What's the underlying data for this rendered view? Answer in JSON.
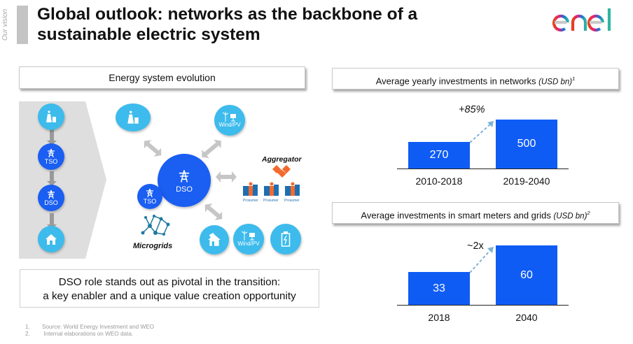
{
  "header": {
    "section": "Our vision",
    "title_line1": "Global outlook: networks as the backbone of a",
    "title_line2": "sustainable electric system",
    "logo_text": "enel",
    "logo_colors": [
      "#e8401c",
      "#e6207a",
      "#1f6dd8",
      "#2fb5a0"
    ]
  },
  "left_panel": {
    "heading": "Energy system evolution",
    "traditional_chain": [
      {
        "icon": "power-plant-icon",
        "label": ""
      },
      {
        "icon": "transmission-tower-icon",
        "label": "TSO"
      },
      {
        "icon": "transmission-tower-icon",
        "label": "DSO"
      },
      {
        "icon": "house-icon",
        "label": ""
      }
    ],
    "hub": {
      "icon": "transmission-tower-icon",
      "label": "DSO"
    },
    "tso_node": {
      "icon": "transmission-tower-icon",
      "label": "TSO"
    },
    "power_plant_node": {
      "icon": "power-plant-icon",
      "label": ""
    },
    "wind_pv_top": {
      "icon": "wind-solar-icon",
      "label": "Wind/PV"
    },
    "aggregator": {
      "label": "Aggregator",
      "icon": "handshake-icon",
      "prosumers": [
        "Prosumer",
        "Prosumer",
        "Prosumer"
      ]
    },
    "microgrids_label": "Microgrids",
    "bottom_nodes": [
      {
        "icon": "house-solar-icon",
        "label": ""
      },
      {
        "icon": "wind-solar-icon",
        "label": "Wind/PV"
      },
      {
        "icon": "battery-icon",
        "label": ""
      }
    ],
    "message_line1": "DSO role stands out as pivotal in the transition:",
    "message_line2": "a key enabler and a unique value creation opportunity"
  },
  "footnotes": [
    {
      "num": "1.",
      "text": "Source: World Energy Investment and  WEO"
    },
    {
      "num": "2.",
      "text": " Internal elaborations on WEO data."
    }
  ],
  "colors": {
    "bar": "#0f5cf5",
    "light_blue": "#3dbbec",
    "dark_blue": "#1a5ef2",
    "arrow_gray": "#c6c6c6",
    "aggregator_orange": "#f26a2e"
  },
  "chart_data": [
    {
      "type": "bar",
      "title": "Average yearly investments in networks",
      "unit": "(USD bn)",
      "footnote_ref": "1",
      "categories": [
        "2010-2018",
        "2019-2040"
      ],
      "values": [
        270,
        500
      ],
      "value_labels": [
        "270",
        "500"
      ],
      "annotation": "+85%",
      "ylim": [
        0,
        500
      ]
    },
    {
      "type": "bar",
      "title": "Average investments in smart meters and grids",
      "unit": "(USD bn)",
      "footnote_ref": "2",
      "categories": [
        "2018",
        "2040"
      ],
      "values": [
        33,
        60
      ],
      "value_labels": [
        "33",
        "60"
      ],
      "annotation": "~2x",
      "ylim": [
        0,
        60
      ]
    }
  ]
}
